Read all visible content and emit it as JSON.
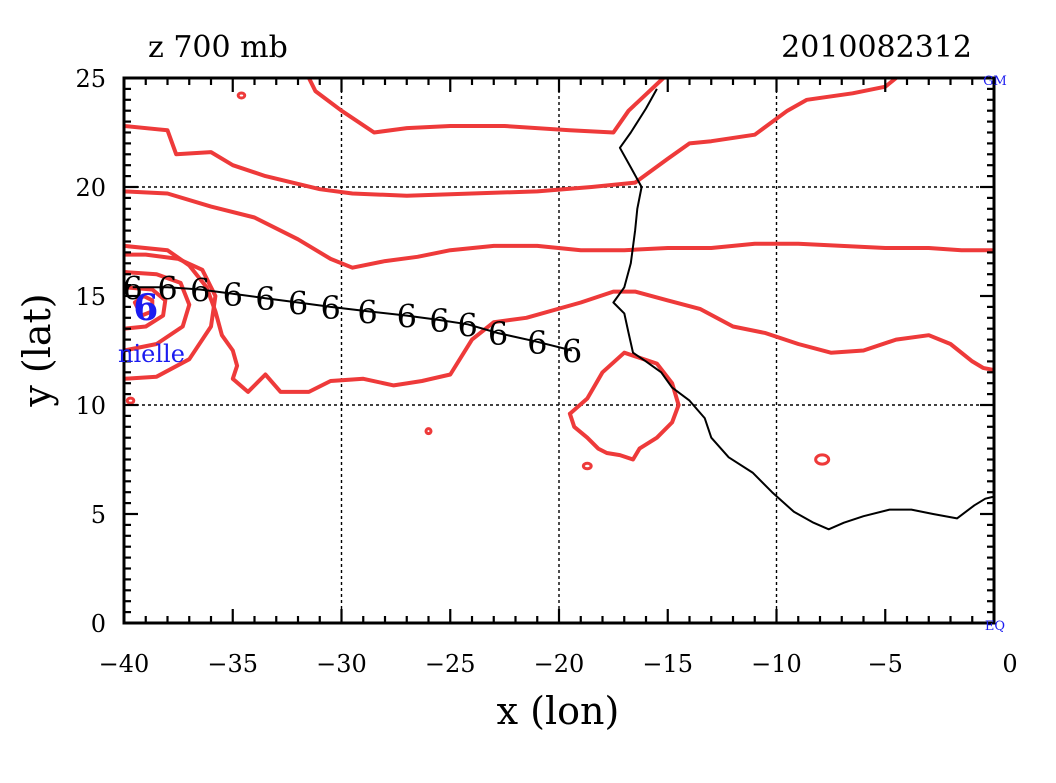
{
  "title_left": "z 700 mb",
  "title_right": "2010082312",
  "corner_top_right": "GM",
  "corner_bottom_right": "EQ",
  "storm_label": "nielle",
  "storm_symbol": "6",
  "track_symbol": "6",
  "colors": {
    "contour": "#ee3a3a",
    "track": "#000000",
    "storm": "#1c1cf0",
    "axis": "#000000",
    "grid": "#000000"
  },
  "chart_data": {
    "type": "map",
    "xlabel": "x (lon)",
    "ylabel": "y (lat)",
    "xlim": [
      -40,
      0
    ],
    "ylim": [
      0,
      25
    ],
    "x_ticks": [
      -40,
      -35,
      -30,
      -25,
      -20,
      -15,
      -10,
      -5,
      0
    ],
    "y_ticks": [
      0,
      5,
      10,
      15,
      20,
      25
    ],
    "grid_x": [
      -30,
      -20,
      -10
    ],
    "grid_y": [
      10,
      20
    ],
    "storm_center": {
      "lon": -39.0,
      "lat": 14.5
    },
    "track": [
      {
        "lon": -39.6,
        "lat": 15.4
      },
      {
        "lon": -38.0,
        "lat": 15.4
      },
      {
        "lon": -36.5,
        "lat": 15.3
      },
      {
        "lon": -35.0,
        "lat": 15.1
      },
      {
        "lon": -33.5,
        "lat": 14.9
      },
      {
        "lon": -32.0,
        "lat": 14.7
      },
      {
        "lon": -30.5,
        "lat": 14.5
      },
      {
        "lon": -28.8,
        "lat": 14.3
      },
      {
        "lon": -27.0,
        "lat": 14.1
      },
      {
        "lon": -25.5,
        "lat": 13.9
      },
      {
        "lon": -24.2,
        "lat": 13.7
      },
      {
        "lon": -22.8,
        "lat": 13.3
      },
      {
        "lon": -21.0,
        "lat": 12.9
      },
      {
        "lon": -19.4,
        "lat": 12.5
      }
    ],
    "coastline": [
      [
        -15.5,
        24.5
      ],
      [
        -16.0,
        23.6
      ],
      [
        -16.7,
        22.5
      ],
      [
        -17.2,
        21.8
      ],
      [
        -16.7,
        20.9
      ],
      [
        -16.2,
        20.0
      ],
      [
        -16.4,
        19.0
      ],
      [
        -16.5,
        18.0
      ],
      [
        -16.7,
        16.5
      ],
      [
        -17.0,
        15.4
      ],
      [
        -17.5,
        14.7
      ],
      [
        -17.0,
        14.2
      ],
      [
        -16.8,
        13.3
      ],
      [
        -16.6,
        12.4
      ],
      [
        -16.0,
        12.0
      ],
      [
        -15.3,
        11.5
      ],
      [
        -14.8,
        10.8
      ],
      [
        -14.0,
        10.2
      ],
      [
        -13.3,
        9.4
      ],
      [
        -13.0,
        8.5
      ],
      [
        -12.2,
        7.6
      ],
      [
        -11.1,
        6.9
      ],
      [
        -10.2,
        6.0
      ],
      [
        -9.2,
        5.1
      ],
      [
        -8.3,
        4.6
      ],
      [
        -7.6,
        4.3
      ],
      [
        -6.9,
        4.6
      ],
      [
        -6.0,
        4.9
      ],
      [
        -4.8,
        5.2
      ],
      [
        -3.8,
        5.2
      ],
      [
        -2.8,
        5.0
      ],
      [
        -1.7,
        4.8
      ],
      [
        -0.9,
        5.4
      ],
      [
        -0.4,
        5.7
      ],
      [
        0.0,
        5.8
      ]
    ],
    "contours": [
      [
        [
          -15.2,
          25.0
        ],
        [
          -16.8,
          23.5
        ],
        [
          -17.5,
          22.5
        ],
        [
          -19.5,
          22.6
        ],
        [
          -22.5,
          22.8
        ],
        [
          -25.0,
          22.8
        ],
        [
          -27.0,
          22.7
        ],
        [
          -28.5,
          22.5
        ],
        [
          -30.0,
          23.5
        ],
        [
          -31.2,
          24.4
        ],
        [
          -31.5,
          25.0
        ]
      ],
      [
        [
          -40.0,
          22.8
        ],
        [
          -38.0,
          22.6
        ],
        [
          -37.6,
          21.5
        ],
        [
          -36.0,
          21.6
        ],
        [
          -35.0,
          21.0
        ],
        [
          -33.5,
          20.5
        ],
        [
          -31.0,
          19.9
        ],
        [
          -29.5,
          19.7
        ],
        [
          -27.0,
          19.6
        ],
        [
          -24.0,
          19.7
        ],
        [
          -21.0,
          19.8
        ],
        [
          -18.5,
          20.0
        ],
        [
          -16.5,
          20.2
        ],
        [
          -15.0,
          21.3
        ],
        [
          -14.0,
          22.0
        ],
        [
          -13.0,
          22.1
        ],
        [
          -11.0,
          22.4
        ],
        [
          -9.5,
          23.5
        ],
        [
          -8.6,
          24.0
        ],
        [
          -6.5,
          24.3
        ],
        [
          -5.0,
          24.6
        ],
        [
          -4.5,
          25.0
        ]
      ],
      [
        [
          -40.0,
          19.8
        ],
        [
          -38.0,
          19.7
        ],
        [
          -36.0,
          19.1
        ],
        [
          -34.0,
          18.6
        ],
        [
          -32.0,
          17.6
        ],
        [
          -30.5,
          16.7
        ],
        [
          -29.5,
          16.3
        ],
        [
          -28.0,
          16.6
        ],
        [
          -26.5,
          16.8
        ],
        [
          -25.0,
          17.1
        ],
        [
          -23.0,
          17.3
        ],
        [
          -21.0,
          17.3
        ],
        [
          -19.0,
          17.1
        ],
        [
          -17.0,
          17.1
        ],
        [
          -15.0,
          17.2
        ],
        [
          -13.0,
          17.2
        ],
        [
          -11.0,
          17.4
        ],
        [
          -9.0,
          17.4
        ],
        [
          -7.0,
          17.3
        ],
        [
          -5.0,
          17.2
        ],
        [
          -3.0,
          17.2
        ],
        [
          -1.5,
          17.1
        ],
        [
          0.0,
          17.1
        ]
      ],
      [
        [
          -40.0,
          17.3
        ],
        [
          -38.0,
          17.1
        ],
        [
          -37.0,
          16.4
        ],
        [
          -36.2,
          15.4
        ],
        [
          -35.8,
          14.3
        ],
        [
          -35.5,
          13.2
        ],
        [
          -35.0,
          12.5
        ],
        [
          -34.8,
          11.8
        ],
        [
          -35.0,
          11.2
        ],
        [
          -34.3,
          10.6
        ],
        [
          -33.5,
          11.4
        ],
        [
          -32.8,
          10.6
        ],
        [
          -31.5,
          10.6
        ],
        [
          -30.5,
          11.1
        ],
        [
          -29.0,
          11.2
        ],
        [
          -27.6,
          10.9
        ],
        [
          -26.3,
          11.1
        ],
        [
          -25.0,
          11.4
        ],
        [
          -24.0,
          13.0
        ],
        [
          -23.0,
          13.8
        ],
        [
          -21.5,
          14.0
        ],
        [
          -19.0,
          14.7
        ],
        [
          -17.5,
          15.2
        ],
        [
          -16.5,
          15.2
        ],
        [
          -15.0,
          14.8
        ],
        [
          -13.5,
          14.4
        ],
        [
          -12.0,
          13.6
        ],
        [
          -10.5,
          13.3
        ],
        [
          -9.0,
          12.8
        ],
        [
          -7.5,
          12.4
        ],
        [
          -6.0,
          12.5
        ],
        [
          -4.5,
          13.0
        ],
        [
          -3.0,
          13.2
        ],
        [
          -2.0,
          12.8
        ],
        [
          -1.0,
          12.0
        ],
        [
          -0.5,
          11.7
        ],
        [
          0.0,
          11.6
        ]
      ],
      [
        [
          -19.5,
          9.6
        ],
        [
          -18.7,
          10.3
        ],
        [
          -18.0,
          11.5
        ],
        [
          -17.0,
          12.4
        ],
        [
          -15.5,
          11.9
        ],
        [
          -14.8,
          11.0
        ],
        [
          -14.5,
          10.0
        ],
        [
          -14.8,
          9.2
        ],
        [
          -15.5,
          8.5
        ],
        [
          -16.3,
          8.0
        ],
        [
          -16.6,
          7.5
        ],
        [
          -17.2,
          7.7
        ],
        [
          -17.8,
          7.8
        ],
        [
          -18.2,
          8.0
        ],
        [
          -18.7,
          8.5
        ],
        [
          -19.3,
          9.0
        ],
        [
          -19.5,
          9.6
        ]
      ],
      [
        [
          -40.0,
          11.2
        ],
        [
          -38.5,
          11.3
        ],
        [
          -37.0,
          12.1
        ],
        [
          -36.0,
          13.6
        ],
        [
          -35.8,
          15.0
        ],
        [
          -36.4,
          16.2
        ],
        [
          -37.5,
          16.7
        ],
        [
          -39.0,
          16.9
        ],
        [
          -40.0,
          16.9
        ]
      ],
      [
        [
          -40.0,
          12.5
        ],
        [
          -38.5,
          12.8
        ],
        [
          -37.3,
          13.6
        ],
        [
          -37.0,
          14.6
        ],
        [
          -37.4,
          15.6
        ],
        [
          -38.5,
          16.0
        ],
        [
          -40.0,
          16.1
        ]
      ],
      [
        [
          -40.0,
          13.5
        ],
        [
          -39.0,
          13.6
        ],
        [
          -38.2,
          14.1
        ],
        [
          -38.1,
          14.8
        ],
        [
          -38.7,
          15.3
        ],
        [
          -40.0,
          15.4
        ]
      ],
      [
        [
          -39.2,
          14.1
        ],
        [
          -38.7,
          14.3
        ],
        [
          -38.7,
          14.8
        ],
        [
          -39.1,
          15.0
        ],
        [
          -39.5,
          14.7
        ],
        [
          -39.2,
          14.1
        ]
      ]
    ],
    "contour_blobs": [
      {
        "lon": -34.6,
        "lat": 24.2,
        "r": 0.15
      },
      {
        "lon": -39.7,
        "lat": 10.2,
        "r": 0.15
      },
      {
        "lon": -26.0,
        "lat": 8.8,
        "r": 0.08
      },
      {
        "lon": -18.7,
        "lat": 7.2,
        "r": 0.18
      },
      {
        "lon": -7.9,
        "lat": 7.5,
        "r": 0.3
      }
    ]
  }
}
